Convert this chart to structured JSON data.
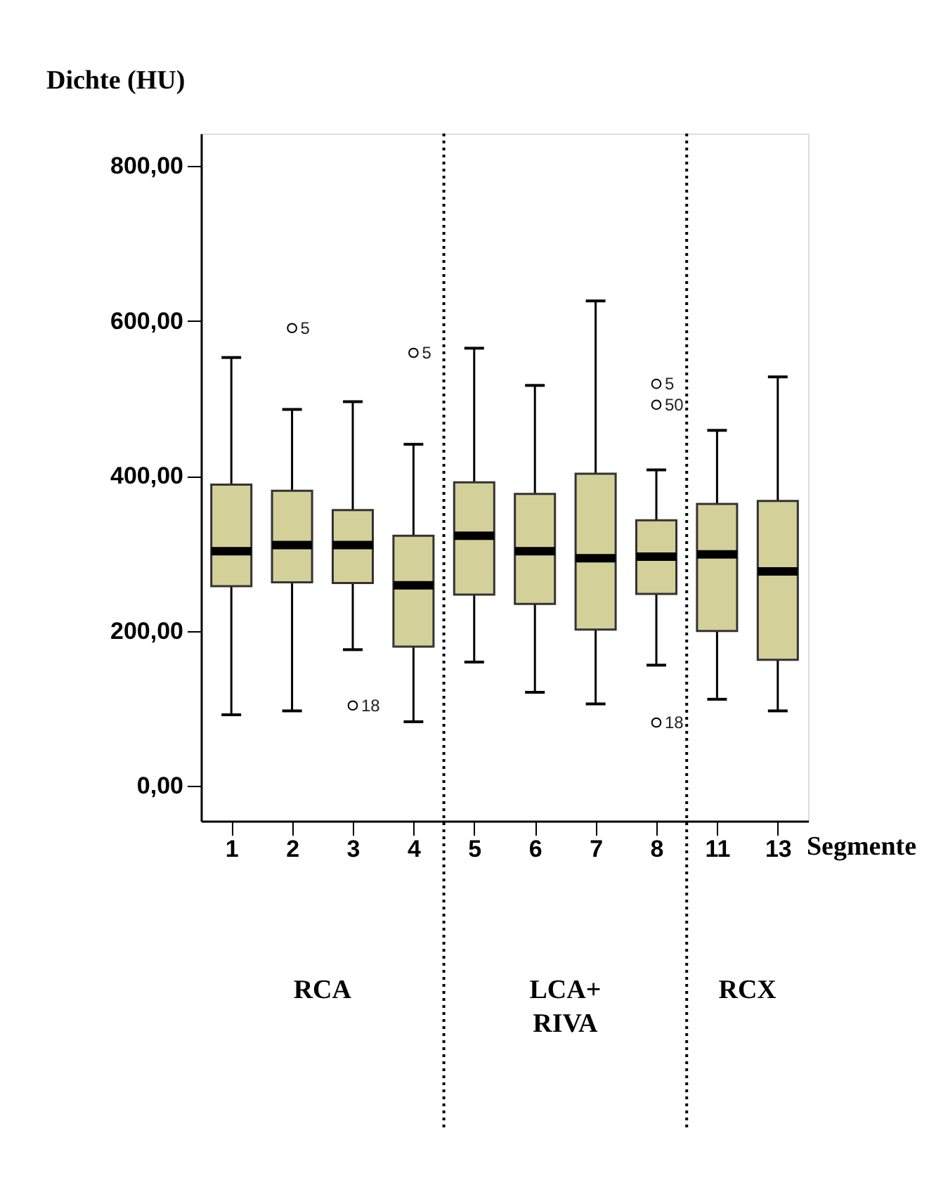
{
  "chart_data": {
    "type": "box",
    "ylabel": "Dichte (HU)",
    "xlabel": "Segmente",
    "categories": [
      "1",
      "2",
      "3",
      "4",
      "5",
      "6",
      "7",
      "8",
      "11",
      "13"
    ],
    "color": "#d4d09a",
    "boxes": [
      {
        "low": 92,
        "q1": 258,
        "median": 303,
        "q3": 389,
        "high": 553
      },
      {
        "low": 97,
        "q1": 263,
        "median": 311,
        "q3": 381,
        "high": 486,
        "outliers": [
          591
        ]
      },
      {
        "low": 176,
        "q1": 262,
        "median": 311,
        "q3": 356,
        "high": 496,
        "outliers": [
          104
        ]
      },
      {
        "low": 83,
        "q1": 180,
        "median": 259,
        "q3": 323,
        "high": 441,
        "outliers": [
          559
        ]
      },
      {
        "low": 160,
        "q1": 247,
        "median": 323,
        "q3": 392,
        "high": 565
      },
      {
        "low": 121,
        "q1": 235,
        "median": 303,
        "q3": 377,
        "high": 517
      },
      {
        "low": 106,
        "q1": 202,
        "median": 294,
        "q3": 403,
        "high": 626
      },
      {
        "low": 156,
        "q1": 248,
        "median": 296,
        "q3": 343,
        "high": 408,
        "outliers": [
          519,
          492,
          82
        ]
      },
      {
        "low": 112,
        "q1": 200,
        "median": 299,
        "q3": 364,
        "high": 459
      },
      {
        "low": 97,
        "q1": 163,
        "median": 277,
        "q3": 368,
        "high": 528
      }
    ],
    "ylim": [
      -45,
      842
    ],
    "yticks": [
      {
        "value": 0,
        "label": "0,00"
      },
      {
        "value": 200,
        "label": "200,00"
      },
      {
        "value": 400,
        "label": "400,00"
      },
      {
        "value": 600,
        "label": "600,00"
      },
      {
        "value": 800,
        "label": "800,00"
      }
    ],
    "grid": false,
    "annotations": [
      "5",
      "18",
      "5",
      "5",
      "50",
      "18",
      "RCA",
      "LCA+\nRIVA",
      "RCX"
    ]
  }
}
